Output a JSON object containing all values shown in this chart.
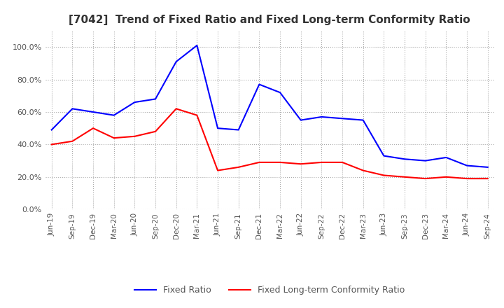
{
  "title": "[7042]  Trend of Fixed Ratio and Fixed Long-term Conformity Ratio",
  "title_fontsize": 11,
  "x_labels": [
    "Jun-19",
    "Sep-19",
    "Dec-19",
    "Mar-20",
    "Jun-20",
    "Sep-20",
    "Dec-20",
    "Mar-21",
    "Jun-21",
    "Sep-21",
    "Dec-21",
    "Mar-22",
    "Jun-22",
    "Sep-22",
    "Dec-22",
    "Mar-23",
    "Jun-23",
    "Sep-23",
    "Dec-23",
    "Mar-24",
    "Jun-24",
    "Sep-24"
  ],
  "fixed_ratio": [
    49.0,
    62.0,
    60.0,
    58.0,
    66.0,
    68.0,
    91.0,
    101.0,
    50.0,
    49.0,
    77.0,
    72.0,
    55.0,
    57.0,
    56.0,
    55.0,
    33.0,
    31.0,
    30.0,
    32.0,
    27.0,
    26.0
  ],
  "fixed_lt_ratio": [
    40.0,
    42.0,
    50.0,
    44.0,
    45.0,
    48.0,
    62.0,
    58.0,
    24.0,
    26.0,
    29.0,
    29.0,
    28.0,
    29.0,
    29.0,
    24.0,
    21.0,
    20.0,
    19.0,
    20.0,
    19.0,
    19.0
  ],
  "fixed_ratio_color": "#0000FF",
  "fixed_lt_ratio_color": "#FF0000",
  "ylim": [
    0,
    110
  ],
  "yticks": [
    0,
    20,
    40,
    60,
    80,
    100
  ],
  "background_color": "#FFFFFF",
  "grid_color": "#AAAAAA",
  "legend_labels": [
    "Fixed Ratio",
    "Fixed Long-term Conformity Ratio"
  ]
}
